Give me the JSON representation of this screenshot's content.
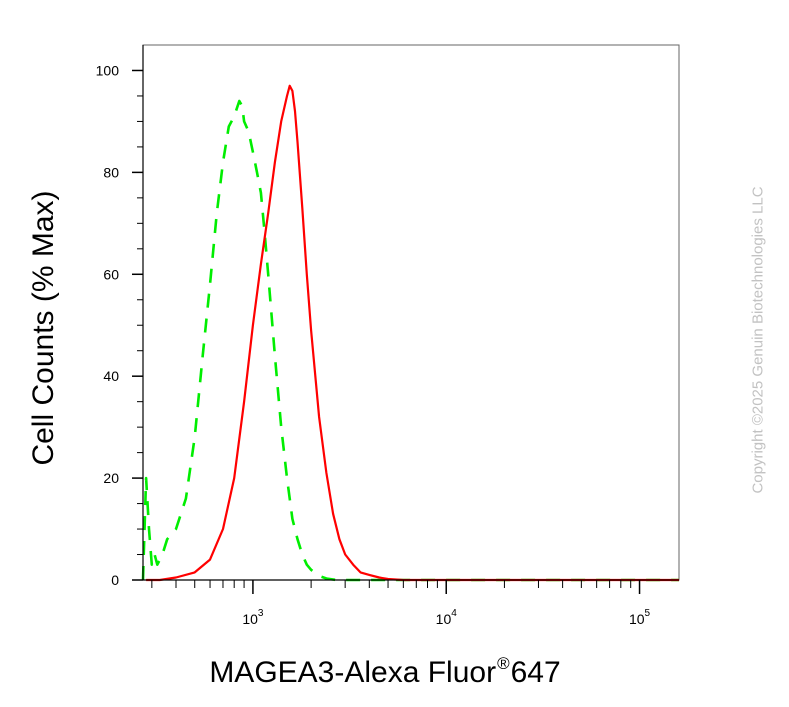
{
  "chart_data": {
    "type": "line",
    "xlabel": "MAGEA3-Alexa Fluor",
    "xlabel_mark": "®",
    "xlabel_suffix": "647",
    "ylabel": "Cell Counts (% Max)",
    "xscale": "log",
    "xlim": [
      270,
      160000
    ],
    "ylim": [
      0,
      105
    ],
    "y_ticks": [
      0,
      20,
      40,
      60,
      80,
      100
    ],
    "x_major_ticks": [
      {
        "value": 1000,
        "base": "10",
        "exp": "3"
      },
      {
        "value": 10000,
        "base": "10",
        "exp": "4"
      },
      {
        "value": 100000,
        "base": "10",
        "exp": "5"
      }
    ],
    "grid": false,
    "series": [
      {
        "color": "#ff0000",
        "style": "solid",
        "x": [
          280,
          330,
          400,
          500,
          600,
          700,
          800,
          900,
          1000,
          1100,
          1200,
          1300,
          1400,
          1500,
          1550,
          1600,
          1650,
          1700,
          1800,
          1900,
          2000,
          2200,
          2400,
          2600,
          2800,
          3000,
          3300,
          3600,
          4000,
          4500,
          5000,
          6000,
          10000,
          100000,
          160000
        ],
        "y": [
          0,
          0,
          0.5,
          1.5,
          4,
          10,
          20,
          35,
          50,
          62,
          72,
          82,
          90,
          95,
          97,
          96,
          92,
          86,
          73,
          60,
          49,
          32,
          21,
          13,
          8,
          5,
          3,
          1.5,
          1,
          0.5,
          0.2,
          0,
          0,
          0,
          0
        ]
      },
      {
        "color": "#00ee00",
        "style": "dashed",
        "x": [
          270,
          280,
          290,
          300,
          310,
          320,
          340,
          360,
          400,
          450,
          500,
          550,
          600,
          650,
          700,
          750,
          800,
          850,
          880,
          900,
          950,
          1000,
          1050,
          1100,
          1150,
          1200,
          1300,
          1400,
          1500,
          1600,
          1700,
          1800,
          1900,
          2000,
          2200,
          2400,
          2700,
          3000,
          4000,
          10000,
          100000,
          160000
        ],
        "y": [
          0,
          20,
          10,
          3,
          5,
          3,
          5,
          8,
          10,
          16,
          28,
          44,
          58,
          72,
          82,
          89,
          91,
          94,
          93,
          90,
          88,
          84,
          80,
          76,
          68,
          60,
          44,
          30,
          20,
          12,
          8,
          5,
          3,
          2,
          0.8,
          0.3,
          0,
          0,
          0,
          0,
          0,
          0
        ]
      }
    ]
  },
  "watermark": "Copyright ©2025 Genuin Biotechnologies LLC",
  "colors": {
    "axis": "#000000",
    "frame": "#666666",
    "watermark": "#c2c2c2"
  }
}
